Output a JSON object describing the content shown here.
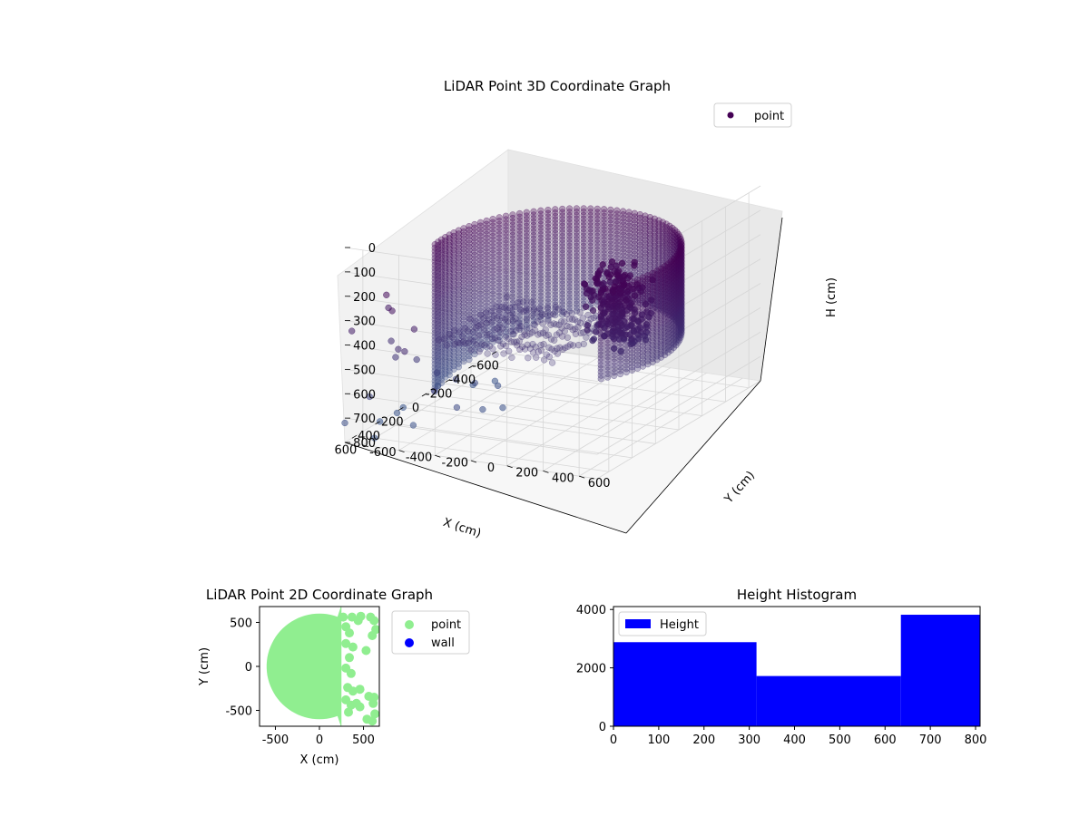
{
  "chart_data": [
    {
      "type": "scatter",
      "title": "LiDAR Point 3D Coordinate Graph",
      "xlabel": "X (cm)",
      "ylabel": "Y (cm)",
      "zlabel": "H (cm)",
      "legend": "top-right",
      "grid": true,
      "xlim": [
        -700,
        700
      ],
      "ylim": [
        -700,
        700
      ],
      "zlim": [
        0,
        800
      ],
      "z_inverted": true,
      "x_ticks": [
        -600,
        -400,
        -200,
        0,
        200,
        400,
        600
      ],
      "y_ticks": [
        -600,
        -400,
        -200,
        0,
        200,
        400,
        600
      ],
      "z_ticks": [
        0,
        100,
        200,
        300,
        400,
        500,
        600,
        700,
        800
      ],
      "series": [
        {
          "name": "point",
          "color": "#440154",
          "colormap": "viridis",
          "wall": {
            "center_x": 0,
            "center_y": 0,
            "radius": 600,
            "theta_from_deg": 55,
            "theta_to_deg": 280,
            "h_top": 150,
            "h_bottom": 520,
            "h_bottom_front": 760
          },
          "floor": {
            "x_from": -350,
            "x_to": 250,
            "y_from": -480,
            "y_to": 150,
            "h": 500
          },
          "outliers": [
            [
              600,
              -380,
              330
            ],
            [
              620,
              -420,
              420
            ],
            [
              520,
              -520,
              450
            ],
            [
              380,
              -650,
              470
            ],
            [
              420,
              -600,
              520
            ],
            [
              300,
              -560,
              560
            ],
            [
              250,
              -480,
              620
            ],
            [
              180,
              -420,
              660
            ],
            [
              80,
              -380,
              700
            ],
            [
              -40,
              -330,
              740
            ],
            [
              520,
              -320,
              600
            ],
            [
              420,
              -260,
              690
            ],
            [
              260,
              -220,
              740
            ],
            [
              150,
              -180,
              760
            ],
            [
              600,
              -600,
              800
            ],
            [
              400,
              -700,
              800
            ],
            [
              330,
              -650,
              780
            ],
            [
              200,
              -700,
              800
            ],
            [
              640,
              -700,
              360
            ],
            [
              580,
              -640,
              640
            ],
            [
              700,
              -700,
              720
            ],
            [
              500,
              -450,
              760
            ],
            [
              120,
              -560,
              720
            ],
            [
              -200,
              -450,
              780
            ],
            [
              -120,
              -520,
              780
            ],
            [
              560,
              -560,
              220
            ],
            [
              650,
              -470,
              250
            ],
            [
              480,
              -600,
              300
            ]
          ],
          "dense_patch": {
            "x_from": -120,
            "x_to": 130,
            "y_from": 250,
            "y_to": 480,
            "h_from": 180,
            "h_to": 480
          }
        }
      ]
    },
    {
      "type": "scatter",
      "title": "LiDAR Point 2D Coordinate Graph",
      "xlabel": "X (cm)",
      "ylabel": "Y (cm)",
      "legend": "outside-right",
      "xlim": [
        -680,
        680
      ],
      "ylim": [
        -680,
        680
      ],
      "x_ticks": [
        -500,
        0,
        500
      ],
      "y_ticks": [
        -500,
        0,
        500
      ],
      "series": [
        {
          "name": "point",
          "color": "#90ee90",
          "region": {
            "center_x": 0,
            "center_y": 0,
            "radius": 600,
            "theta_from_deg": 70,
            "theta_to_deg": 290,
            "right_boundary_x": 250
          },
          "points": [
            [
              300,
              450
            ],
            [
              340,
              380
            ],
            [
              300,
              260
            ],
            [
              380,
              220
            ],
            [
              340,
              100
            ],
            [
              300,
              -20
            ],
            [
              360,
              -80
            ],
            [
              320,
              -240
            ],
            [
              380,
              -280
            ],
            [
              300,
              -380
            ],
            [
              360,
              -440
            ],
            [
              330,
              -520
            ],
            [
              420,
              -420
            ],
            [
              460,
              -260
            ],
            [
              440,
              520
            ],
            [
              620,
              520
            ],
            [
              640,
              420
            ],
            [
              600,
              350
            ],
            [
              610,
              -420
            ],
            [
              630,
              -540
            ],
            [
              600,
              -620
            ],
            [
              580,
              560
            ],
            [
              470,
              570
            ],
            [
              370,
              560
            ],
            [
              270,
              560
            ],
            [
              530,
              180
            ],
            [
              560,
              -340
            ],
            [
              460,
              -460
            ],
            [
              620,
              -350
            ],
            [
              540,
              -600
            ]
          ]
        },
        {
          "name": "wall",
          "color": "#0000ff",
          "points": []
        }
      ]
    },
    {
      "type": "bar",
      "title": "Height Histogram",
      "legend": "top-left",
      "xlim": [
        0,
        810
      ],
      "ylim": [
        0,
        4100
      ],
      "x_ticks": [
        0,
        100,
        200,
        300,
        400,
        500,
        600,
        700,
        800
      ],
      "y_ticks": [
        0,
        2000,
        4000
      ],
      "series": [
        {
          "name": "Height",
          "color": "#0000ff",
          "bins": [
            {
              "from": 0,
              "to": 316,
              "value": 2880
            },
            {
              "from": 316,
              "to": 635,
              "value": 1720
            },
            {
              "from": 635,
              "to": 810,
              "value": 3820
            }
          ]
        }
      ]
    }
  ]
}
